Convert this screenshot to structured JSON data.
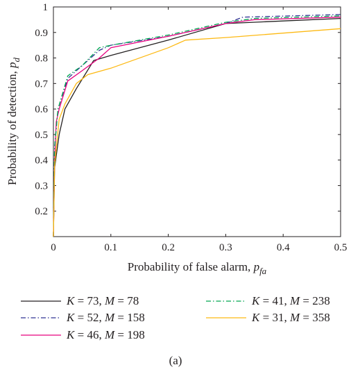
{
  "chart_data": {
    "type": "line",
    "title": "",
    "xlabel": {
      "prefix": "Probability of false alarm, ",
      "symbol": "p",
      "sub": "fa"
    },
    "ylabel": {
      "prefix": "Probability of detection, ",
      "symbol": "p",
      "sub": "d"
    },
    "xlim": [
      0,
      0.5
    ],
    "ylim": [
      0.1,
      1.0
    ],
    "xticks": [
      {
        "value": 0,
        "label": "0"
      },
      {
        "value": 0.1,
        "label": "0.1"
      },
      {
        "value": 0.2,
        "label": "0.2"
      },
      {
        "value": 0.3,
        "label": "0.3"
      },
      {
        "value": 0.4,
        "label": "0.4"
      },
      {
        "value": 0.5,
        "label": "0.5"
      }
    ],
    "yticks": [
      {
        "value": 0.2,
        "label": "0.2"
      },
      {
        "value": 0.3,
        "label": "0.3"
      },
      {
        "value": 0.4,
        "label": "0.4"
      },
      {
        "value": 0.5,
        "label": "0.5"
      },
      {
        "value": 0.6,
        "label": "0.6"
      },
      {
        "value": 0.7,
        "label": "0.7"
      },
      {
        "value": 0.8,
        "label": "0.8"
      },
      {
        "value": 0.9,
        "label": "0.9"
      },
      {
        "value": 1.0,
        "label": "1"
      }
    ],
    "grid": false,
    "legend_position": "below",
    "caption": "(a)",
    "series": [
      {
        "name": "K = 73, M = 78",
        "K": "73",
        "M": "78",
        "color": "#231f20",
        "dash": "solid",
        "points": [
          [
            0,
            0.1
          ],
          [
            0.002,
            0.37
          ],
          [
            0.01,
            0.5
          ],
          [
            0.02,
            0.6
          ],
          [
            0.04,
            0.68
          ],
          [
            0.07,
            0.79
          ],
          [
            0.1,
            0.81
          ],
          [
            0.2,
            0.87
          ],
          [
            0.3,
            0.935
          ],
          [
            0.4,
            0.945
          ],
          [
            0.5,
            0.955
          ]
        ]
      },
      {
        "name": "K = 52, M = 158",
        "K": "52",
        "M": "158",
        "color": "#2e3192",
        "dash": "dashdot",
        "points": [
          [
            0,
            0.1
          ],
          [
            0.002,
            0.45
          ],
          [
            0.008,
            0.6
          ],
          [
            0.025,
            0.72
          ],
          [
            0.05,
            0.77
          ],
          [
            0.08,
            0.83
          ],
          [
            0.1,
            0.85
          ],
          [
            0.2,
            0.885
          ],
          [
            0.3,
            0.935
          ],
          [
            0.33,
            0.96
          ],
          [
            0.5,
            0.97
          ]
        ]
      },
      {
        "name": "K = 46, M = 198",
        "K": "46",
        "M": "198",
        "color": "#e6007e",
        "dash": "solid",
        "points": [
          [
            0,
            0.1
          ],
          [
            0.002,
            0.4
          ],
          [
            0.005,
            0.55
          ],
          [
            0.01,
            0.6
          ],
          [
            0.025,
            0.71
          ],
          [
            0.05,
            0.75
          ],
          [
            0.08,
            0.8
          ],
          [
            0.1,
            0.84
          ],
          [
            0.2,
            0.885
          ],
          [
            0.3,
            0.935
          ],
          [
            0.35,
            0.95
          ],
          [
            0.5,
            0.96
          ]
        ]
      },
      {
        "name": "K = 41, M = 238",
        "K": "41",
        "M": "238",
        "color": "#00a651",
        "dash": "dashdot",
        "points": [
          [
            0,
            0.1
          ],
          [
            0.002,
            0.45
          ],
          [
            0.008,
            0.6
          ],
          [
            0.025,
            0.73
          ],
          [
            0.05,
            0.77
          ],
          [
            0.08,
            0.84
          ],
          [
            0.1,
            0.85
          ],
          [
            0.2,
            0.89
          ],
          [
            0.3,
            0.94
          ],
          [
            0.35,
            0.955
          ],
          [
            0.5,
            0.965
          ]
        ]
      },
      {
        "name": "K = 31, M = 358",
        "K": "31",
        "M": "358",
        "color": "#fdb913",
        "dash": "solid",
        "points": [
          [
            0,
            0.1
          ],
          [
            0.002,
            0.38
          ],
          [
            0.01,
            0.56
          ],
          [
            0.02,
            0.62
          ],
          [
            0.04,
            0.7
          ],
          [
            0.06,
            0.735
          ],
          [
            0.1,
            0.76
          ],
          [
            0.2,
            0.84
          ],
          [
            0.23,
            0.87
          ],
          [
            0.3,
            0.88
          ],
          [
            0.5,
            0.915
          ]
        ]
      }
    ]
  }
}
